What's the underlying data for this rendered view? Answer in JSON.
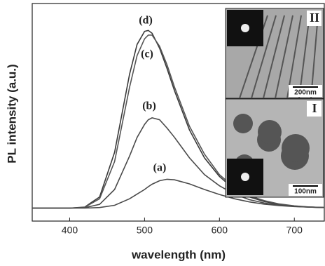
{
  "chart_data": {
    "type": "line",
    "x_label": "wavelength (nm)",
    "y_label": "PL intensity (a.u.)",
    "x": [
      350,
      400,
      420,
      440,
      460,
      480,
      490,
      500,
      505,
      510,
      520,
      530,
      540,
      560,
      580,
      600,
      620,
      640,
      660,
      680,
      700,
      720,
      740
    ],
    "series": [
      {
        "name": "(d)",
        "color": "#3a3a3a",
        "values": [
          0,
          0,
          0.005,
          0.06,
          0.3,
          0.72,
          0.88,
          0.95,
          0.955,
          0.94,
          0.86,
          0.75,
          0.63,
          0.42,
          0.27,
          0.17,
          0.1,
          0.06,
          0.035,
          0.02,
          0.01,
          0.005,
          0.003
        ]
      },
      {
        "name": "(c)",
        "color": "#555555",
        "values": [
          0,
          0,
          0.004,
          0.05,
          0.25,
          0.65,
          0.82,
          0.91,
          0.93,
          0.93,
          0.87,
          0.77,
          0.65,
          0.44,
          0.29,
          0.18,
          0.11,
          0.065,
          0.04,
          0.022,
          0.012,
          0.006,
          0.003
        ]
      },
      {
        "name": "(b)",
        "color": "#4a4a4a",
        "values": [
          0,
          0,
          0.002,
          0.02,
          0.1,
          0.28,
          0.38,
          0.45,
          0.475,
          0.485,
          0.475,
          0.43,
          0.38,
          0.27,
          0.18,
          0.12,
          0.075,
          0.045,
          0.027,
          0.016,
          0.009,
          0.005,
          0.003
        ]
      },
      {
        "name": "(a)",
        "color": "#4a4a4a",
        "values": [
          0,
          0,
          0,
          0.003,
          0.015,
          0.05,
          0.075,
          0.1,
          0.115,
          0.128,
          0.147,
          0.155,
          0.152,
          0.13,
          0.1,
          0.073,
          0.05,
          0.033,
          0.021,
          0.013,
          0.008,
          0.005,
          0.003
        ]
      }
    ],
    "xlim": [
      350,
      740
    ],
    "xticks": [
      400,
      500,
      600,
      700
    ],
    "ylim": [
      -0.07,
      1.1
    ],
    "insets": [
      {
        "label": "II",
        "scale": "200nm"
      },
      {
        "label": "I",
        "scale": "100nm"
      }
    ]
  }
}
